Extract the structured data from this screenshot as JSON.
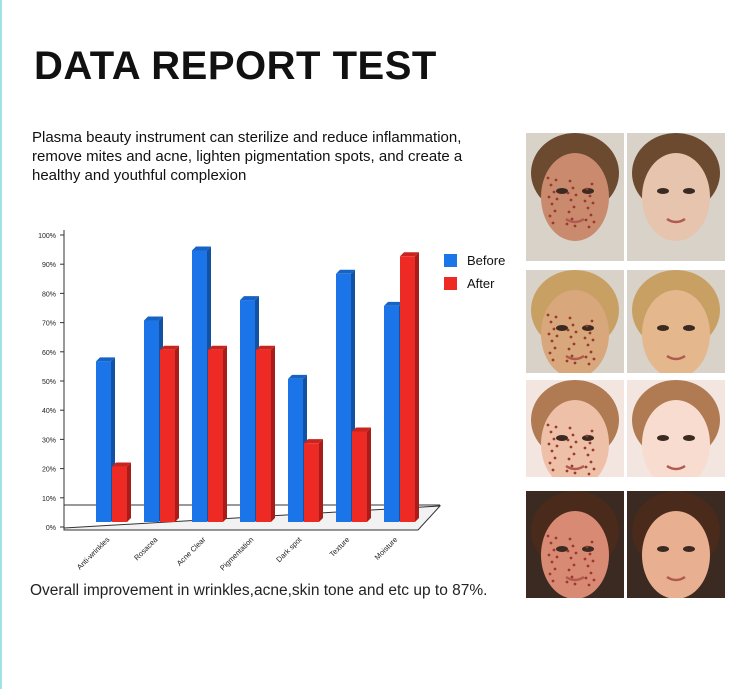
{
  "title": "DATA REPORT TEST",
  "intro": "Plasma beauty instrument can sterilize and reduce inflammation, remove mites and acne, lighten pigmentation spots, and create a healthy and youthful complexion",
  "footer": "Overall improvement in wrinkles,acne,skin tone and etc up to 87%.",
  "colors": {
    "before": "#1b74e8",
    "after": "#ee2a24",
    "frame": "#9fe3e6"
  },
  "chart_data": {
    "type": "bar",
    "categories": [
      "Anti-wrinkles",
      "Rosacea",
      "Acne Clear",
      "Pigmentation",
      "Dark spot",
      "Texture",
      "Moisture"
    ],
    "series": [
      {
        "name": "Before",
        "values": [
          55,
          69,
          93,
          76,
          49,
          85,
          74
        ]
      },
      {
        "name": "After",
        "values": [
          19,
          59,
          59,
          59,
          27,
          31,
          91
        ]
      }
    ],
    "yticks": [
      "0%",
      "10%",
      "20%",
      "30%",
      "40%",
      "50%",
      "60%",
      "70%",
      "80%",
      "90%",
      "100%"
    ],
    "ylim": [
      0,
      100
    ],
    "legend_position": "right",
    "grid": false
  },
  "photos": [
    {
      "name": "acne",
      "before_skin": "#c98a6e",
      "after_skin": "#e7c4ae",
      "hair": "#6b4a30"
    },
    {
      "name": "wrinkles",
      "before_skin": "#d8a77c",
      "after_skin": "#e4b78d",
      "hair": "#c9a064"
    },
    {
      "name": "freckles",
      "before_skin": "#eec0a8",
      "after_skin": "#f7dccf",
      "hair": "#b07a52"
    },
    {
      "name": "redness",
      "before_skin": "#d88a74",
      "after_skin": "#e8b091",
      "hair": "#4a2a1a"
    }
  ]
}
